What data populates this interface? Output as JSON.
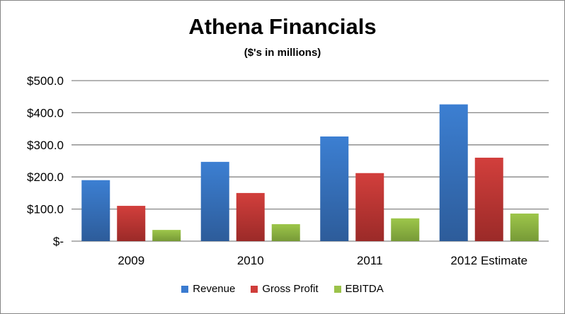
{
  "chart_data": {
    "type": "bar",
    "title": "Athena Financials",
    "subtitle": "($'s in millions)",
    "categories": [
      "2009",
      "2010",
      "2011",
      "2012 Estimate"
    ],
    "series": [
      {
        "name": "Revenue",
        "color": "#3A7BD0",
        "values": [
          190,
          247,
          326,
          426
        ]
      },
      {
        "name": "Gross Profit",
        "color": "#CF3D3A",
        "values": [
          110,
          150,
          212,
          260
        ]
      },
      {
        "name": "EBITDA",
        "color": "#9BC24A",
        "values": [
          35,
          53,
          71,
          86
        ]
      }
    ],
    "ylim": [
      0,
      500
    ],
    "yticks": [
      0,
      100,
      200,
      300,
      400,
      500
    ],
    "ytick_labels": [
      "$-",
      "$100.0",
      "$200.0",
      "$300.0",
      "$400.0",
      "$500.0"
    ],
    "grid": true,
    "legend_position": "bottom"
  }
}
